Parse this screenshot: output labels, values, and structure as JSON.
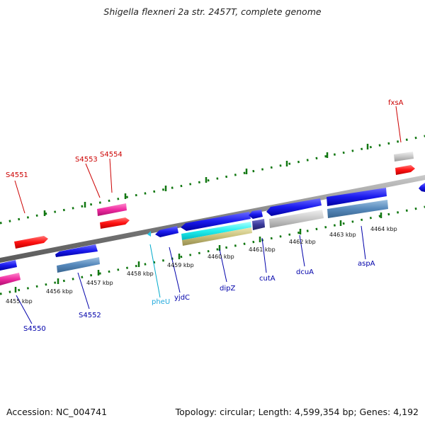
{
  "header": {
    "title": "Shigella flexneri 2a str. 2457T, complete genome"
  },
  "footer": {
    "accession": "Accession: NC_004741",
    "summary": "Topology: circular; Length: 4,599,354 bp; Genes: 4,192"
  },
  "kbp_labels": [
    "4455 kbp",
    "4456 kbp",
    "4457 kbp",
    "4458 kbp",
    "4459 kbp",
    "4460 kbp",
    "4461 kbp",
    "4462 kbp",
    "4463 kbp",
    "4464 kbp"
  ],
  "gene_labels_top": [
    "S4551",
    "S4553",
    "S4554",
    "fxsA"
  ],
  "gene_labels_bottom": [
    "S4550",
    "S4552",
    "pheU",
    "yjdC",
    "dipZ",
    "cutA",
    "dcuA",
    "aspA"
  ],
  "colors": {
    "red": "#ff0000",
    "blue": "#0000cc",
    "cyan": "#00bbdd",
    "tick": "#117711",
    "feature_red": "#ff1111",
    "feature_blue": "#1a1aee",
    "feature_pink": "#ee2aa0",
    "feature_grey": "#c8c8c8",
    "feature_steel": "#5588bb",
    "feature_cyan": "#22eeee",
    "feature_khaki": "#c8bf78",
    "feature_navy": "#3a3a9a"
  }
}
